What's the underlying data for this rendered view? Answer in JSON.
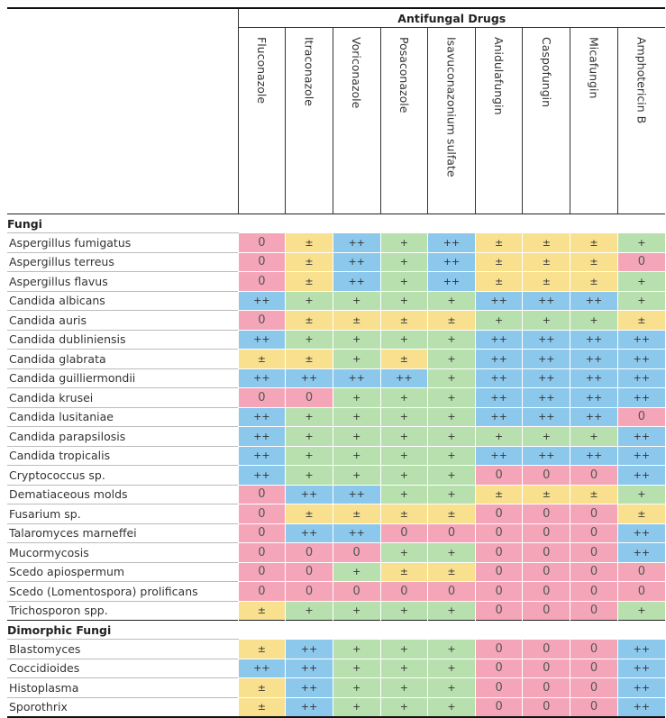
{
  "header": {
    "group_title": "Antifungal Drugs"
  },
  "drugs": [
    "Fluconazole",
    "Itraconazole",
    "Voriconazole",
    "Posaconazole",
    "Isavuconazonium sulfate",
    "Anidulafungin",
    "Caspofungin",
    "Micafungin",
    "Amphotericin B"
  ],
  "sections": [
    {
      "title": "Fungi",
      "rows": [
        {
          "name": "Aspergillus fumigatus",
          "values": [
            "0",
            "±",
            "++",
            "+",
            "++",
            "±",
            "±",
            "±",
            "+"
          ]
        },
        {
          "name": "Aspergillus terreus",
          "values": [
            "0",
            "±",
            "++",
            "+",
            "++",
            "±",
            "±",
            "±",
            "0"
          ]
        },
        {
          "name": "Aspergillus flavus",
          "values": [
            "0",
            "±",
            "++",
            "+",
            "++",
            "±",
            "±",
            "±",
            "+"
          ]
        },
        {
          "name": "Candida albicans",
          "values": [
            "++",
            "+",
            "+",
            "+",
            "+",
            "++",
            "++",
            "++",
            "+"
          ]
        },
        {
          "name": "Candida auris",
          "values": [
            "0",
            "±",
            "±",
            "±",
            "±",
            "+",
            "+",
            "+",
            "±"
          ]
        },
        {
          "name": "Candida dubliniensis",
          "values": [
            "++",
            "+",
            "+",
            "+",
            "+",
            "++",
            "++",
            "++",
            "++"
          ]
        },
        {
          "name": "Candida glabrata",
          "values": [
            "±",
            "±",
            "+",
            "±",
            "+",
            "++",
            "++",
            "++",
            "++"
          ]
        },
        {
          "name": "Candida guilliermondii",
          "values": [
            "++",
            "++",
            "++",
            "++",
            "+",
            "++",
            "++",
            "++",
            "++"
          ]
        },
        {
          "name": "Candida krusei",
          "values": [
            "0",
            "0",
            "+",
            "+",
            "+",
            "++",
            "++",
            "++",
            "++"
          ]
        },
        {
          "name": "Candida lusitaniae",
          "values": [
            "++",
            "+",
            "+",
            "+",
            "+",
            "++",
            "++",
            "++",
            "0"
          ]
        },
        {
          "name": "Candida parapsilosis",
          "values": [
            "++",
            "+",
            "+",
            "+",
            "+",
            "+",
            "+",
            "+",
            "++"
          ]
        },
        {
          "name": "Candida tropicalis",
          "values": [
            "++",
            "+",
            "+",
            "+",
            "+",
            "++",
            "++",
            "++",
            "++"
          ]
        },
        {
          "name": "Cryptococcus sp.",
          "values": [
            "++",
            "+",
            "+",
            "+",
            "+",
            "0",
            "0",
            "0",
            "++"
          ]
        },
        {
          "name": "Dematiaceous molds",
          "values": [
            "0",
            "++",
            "++",
            "+",
            "+",
            "±",
            "±",
            "±",
            "+"
          ]
        },
        {
          "name": "Fusarium sp.",
          "values": [
            "0",
            "±",
            "±",
            "±",
            "±",
            "0",
            "0",
            "0",
            "±"
          ]
        },
        {
          "name": "Talaromyces marneffei",
          "values": [
            "0",
            "++",
            "++",
            "0",
            "0",
            "0",
            "0",
            "0",
            "++"
          ]
        },
        {
          "name": "Mucormycosis",
          "values": [
            "0",
            "0",
            "0",
            "+",
            "+",
            "0",
            "0",
            "0",
            "++"
          ]
        },
        {
          "name": "Scedo apiospermum",
          "values": [
            "0",
            "0",
            "+",
            "±",
            "±",
            "0",
            "0",
            "0",
            "0"
          ]
        },
        {
          "name": "Scedo (Lomentospora) prolificans",
          "values": [
            "0",
            "0",
            "0",
            "0",
            "0",
            "0",
            "0",
            "0",
            "0"
          ]
        },
        {
          "name": "Trichosporon spp.",
          "values": [
            "±",
            "+",
            "+",
            "+",
            "+",
            "0",
            "0",
            "0",
            "+"
          ]
        }
      ]
    },
    {
      "title": "Dimorphic Fungi",
      "rows": [
        {
          "name": "Blastomyces",
          "values": [
            "±",
            "++",
            "+",
            "+",
            "+",
            "0",
            "0",
            "0",
            "++"
          ]
        },
        {
          "name": "Coccidioides",
          "values": [
            "++",
            "++",
            "+",
            "+",
            "+",
            "0",
            "0",
            "0",
            "++"
          ]
        },
        {
          "name": "Histoplasma",
          "values": [
            "±",
            "++",
            "+",
            "+",
            "+",
            "0",
            "0",
            "0",
            "++"
          ]
        },
        {
          "name": "Sporothrix",
          "values": [
            "±",
            "++",
            "+",
            "+",
            "+",
            "0",
            "0",
            "0",
            "++"
          ]
        }
      ]
    }
  ],
  "colors": {
    "0": "#f4a6b8",
    "±": "#f8e08f",
    "+": "#b8dfae",
    "++": "#8cc7ec"
  }
}
